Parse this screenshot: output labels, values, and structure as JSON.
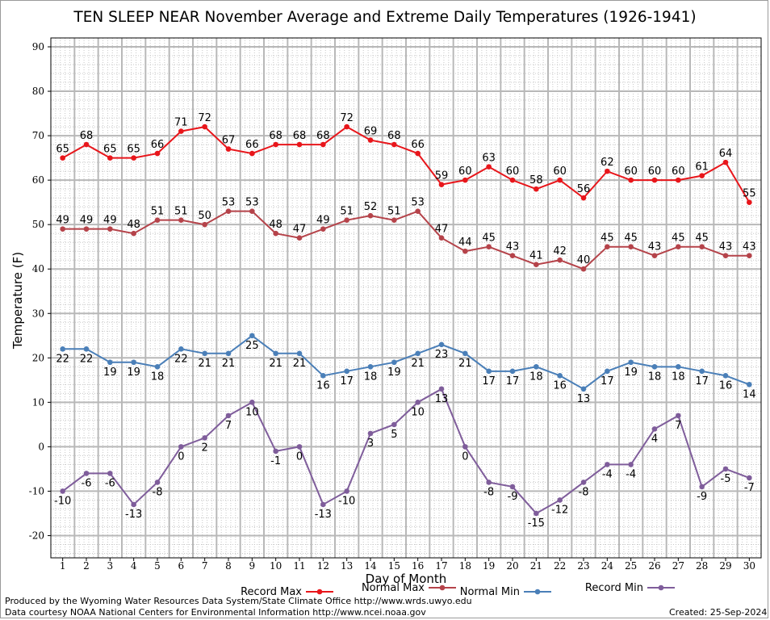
{
  "chart_data": {
    "type": "line",
    "title": "TEN SLEEP NEAR November Average and Extreme Daily Temperatures (1926-1941)",
    "xlabel": "Day of Month",
    "ylabel": "Temperature (F)",
    "x": [
      1,
      2,
      3,
      4,
      5,
      6,
      7,
      8,
      9,
      10,
      11,
      12,
      13,
      14,
      15,
      16,
      17,
      18,
      19,
      20,
      21,
      22,
      23,
      24,
      25,
      26,
      27,
      28,
      29,
      30
    ],
    "ylim": [
      -25,
      92
    ],
    "yticks": [
      -20,
      -10,
      0,
      10,
      20,
      30,
      40,
      50,
      60,
      70,
      80,
      90
    ],
    "grid": true,
    "legend_position": "bottom",
    "series": [
      {
        "name": "Record Max",
        "color": "#e8161b",
        "values": [
          65,
          68,
          65,
          65,
          66,
          71,
          72,
          67,
          66,
          68,
          68,
          68,
          72,
          69,
          68,
          66,
          59,
          60,
          63,
          60,
          58,
          60,
          56,
          62,
          60,
          60,
          60,
          61,
          64,
          55
        ]
      },
      {
        "name": "Normal Max",
        "color": "#b5434a",
        "values": [
          49,
          49,
          49,
          48,
          51,
          51,
          50,
          53,
          53,
          48,
          47,
          49,
          51,
          52,
          51,
          53,
          47,
          44,
          45,
          43,
          41,
          42,
          40,
          45,
          45,
          43,
          45,
          45,
          43,
          43
        ]
      },
      {
        "name": "Normal Min",
        "color": "#4a7fb8",
        "values": [
          22,
          22,
          19,
          19,
          18,
          22,
          21,
          21,
          25,
          21,
          21,
          16,
          17,
          18,
          19,
          21,
          23,
          21,
          17,
          17,
          18,
          16,
          13,
          17,
          19,
          18,
          18,
          17,
          16,
          14
        ]
      },
      {
        "name": "Record Min",
        "color": "#7f5d9b",
        "values": [
          -10,
          -6,
          -6,
          -13,
          -8,
          0,
          2,
          7,
          10,
          -1,
          0,
          -13,
          -10,
          3,
          5,
          10,
          13,
          0,
          -8,
          -9,
          -15,
          -12,
          -8,
          -4,
          -4,
          4,
          7,
          -9,
          -5,
          -7
        ]
      }
    ]
  },
  "footer": {
    "produced_by": "Produced by the Wyoming Water Resources Data System/State Climate Office http://www.wrds.uwyo.edu",
    "data_courtesy": "Data courtesy NOAA National Centers for Environmental Information http://www.ncei.noaa.gov",
    "created": "Created:  25-Sep-2024"
  }
}
